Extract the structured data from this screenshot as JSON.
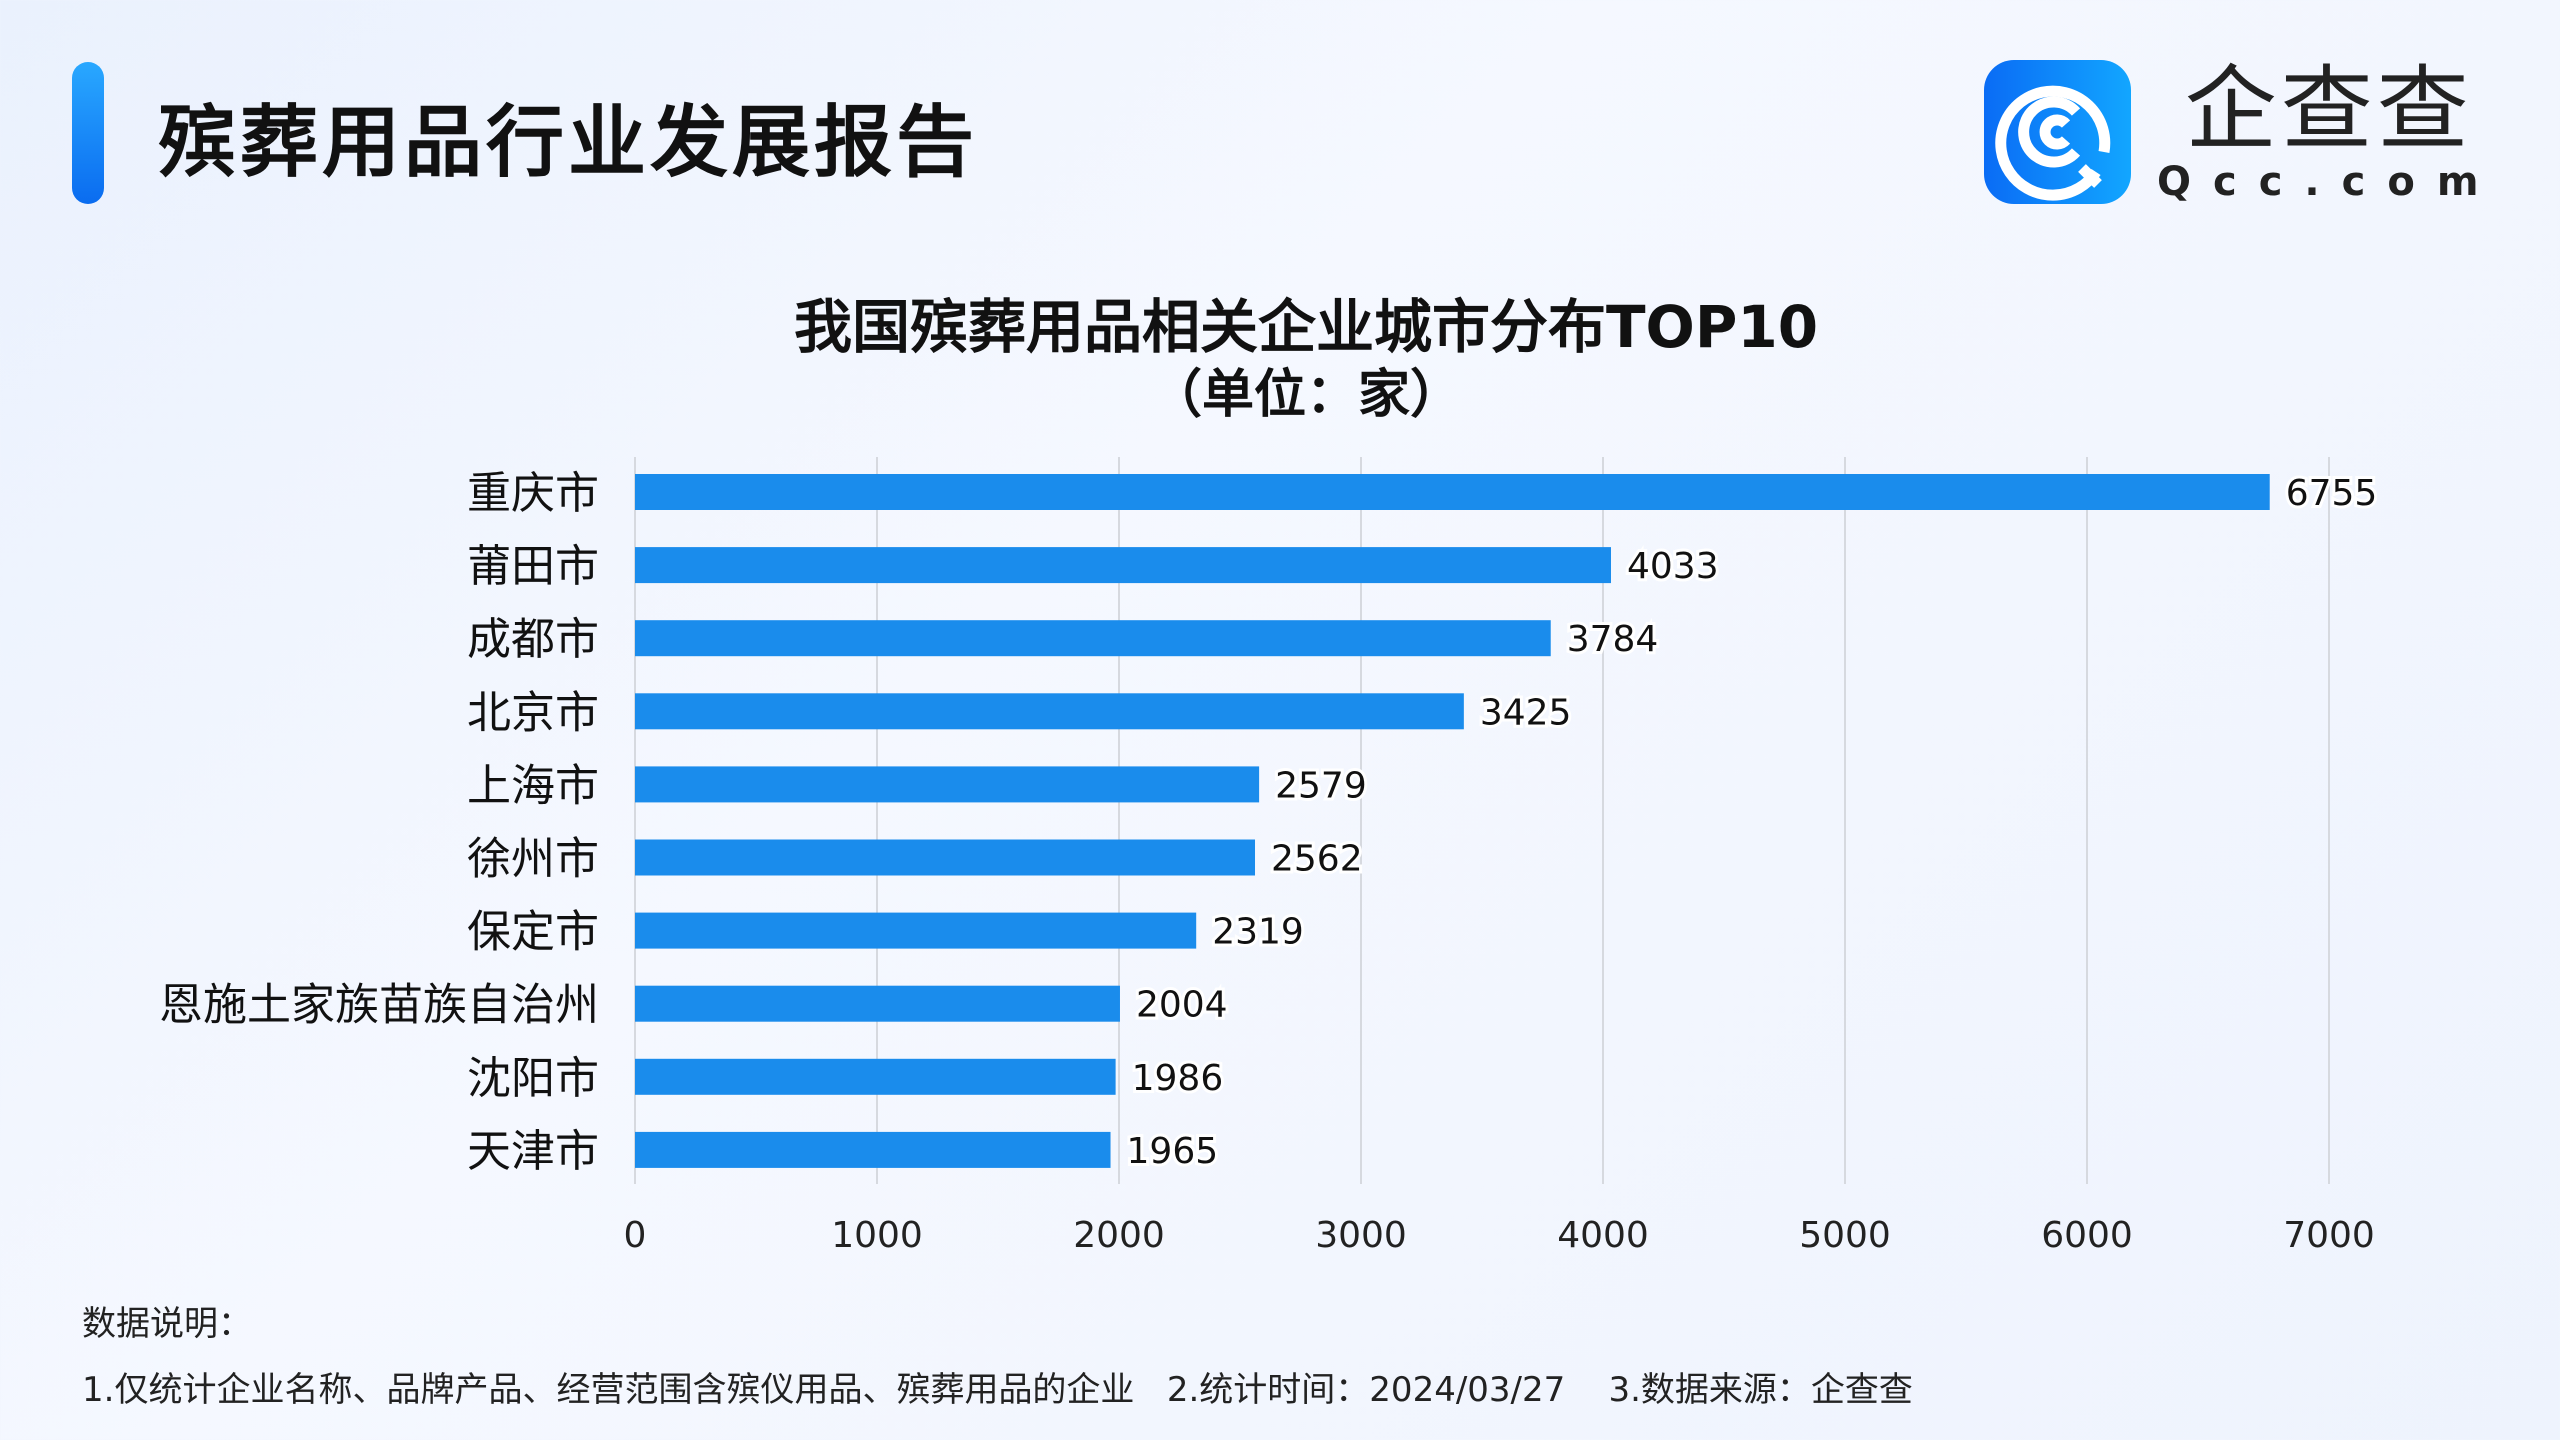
{
  "header": {
    "title": "殡葬用品行业发展报告"
  },
  "logo": {
    "cn": "企查查",
    "en": "Qcc.com"
  },
  "chart_data": {
    "type": "bar",
    "orientation": "horizontal",
    "title": "我国殡葬用品相关企业城市分布TOP10",
    "subtitle": "（单位：家）",
    "categories": [
      "重庆市",
      "莆田市",
      "成都市",
      "北京市",
      "上海市",
      "徐州市",
      "保定市",
      "恩施土家族苗族自治州",
      "沈阳市",
      "天津市"
    ],
    "values": [
      6755,
      4033,
      3784,
      3425,
      2579,
      2562,
      2319,
      2004,
      1986,
      1965
    ],
    "xlim": [
      0,
      7000
    ],
    "xticks": [
      0,
      1000,
      2000,
      3000,
      4000,
      5000,
      6000,
      7000
    ],
    "grid": "vertical",
    "bar_color": "#1a8cec",
    "data_labels": true
  },
  "notes": {
    "title": "数据说明：",
    "body": "1.仅统计企业名称、品牌产品、经营范围含殡仪用品、殡葬用品的企业   2.统计时间：2024/03/27    3.数据来源：企查查"
  }
}
